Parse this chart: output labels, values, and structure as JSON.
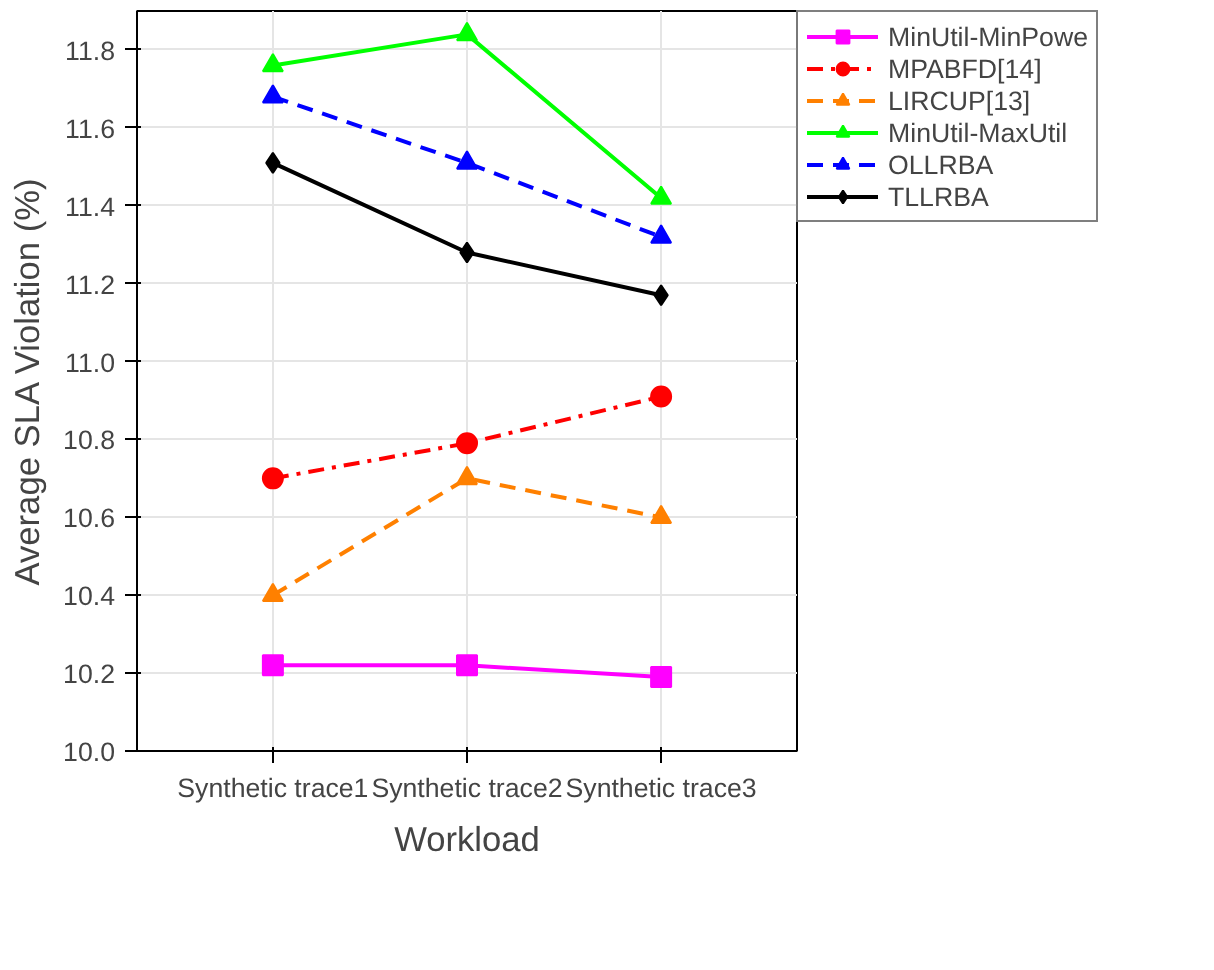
{
  "chart_data": {
    "type": "line",
    "xlabel": "Workload",
    "ylabel": "Average SLA Violation (%)",
    "categories": [
      "Synthetic trace1",
      "Synthetic trace2",
      "Synthetic trace3"
    ],
    "ylim": [
      10.0,
      11.9
    ],
    "yticks": [
      {
        "value": 10.0,
        "label": "10.0"
      },
      {
        "value": 10.2,
        "label": "10.2"
      },
      {
        "value": 10.4,
        "label": "10.4"
      },
      {
        "value": 10.6,
        "label": "10.6"
      },
      {
        "value": 10.8,
        "label": "10.8"
      },
      {
        "value": 11.0,
        "label": "11.0"
      },
      {
        "value": 11.2,
        "label": "11.2"
      },
      {
        "value": 11.4,
        "label": "11.4"
      },
      {
        "value": 11.6,
        "label": "11.6"
      },
      {
        "value": 11.8,
        "label": "11.8"
      }
    ],
    "grid": true,
    "legend": "top right",
    "series": [
      {
        "name": "MinUtil-MinPowe",
        "color": "#ff00ff",
        "marker": "square",
        "line_style": "solid",
        "values": [
          10.22,
          10.22,
          10.19
        ]
      },
      {
        "name": "MPABFD[14]",
        "color": "#ff0000",
        "marker": "circle",
        "line_style": "dashdot",
        "values": [
          10.7,
          10.79,
          10.91
        ]
      },
      {
        "name": "LIRCUP[13]",
        "color": "#ff8000",
        "marker": "triangle",
        "line_style": "dashed",
        "values": [
          10.4,
          10.7,
          10.6
        ]
      },
      {
        "name": "MinUtil-MaxUtil",
        "color": "#00ff00",
        "marker": "triangle",
        "line_style": "solid",
        "values": [
          11.76,
          11.84,
          11.42
        ]
      },
      {
        "name": "OLLRBA",
        "color": "#0000ff",
        "marker": "triangle",
        "line_style": "dashed",
        "values": [
          11.68,
          11.51,
          11.32
        ]
      },
      {
        "name": "TLLRBA",
        "color": "#000000",
        "marker": "diamond",
        "line_style": "solid",
        "values": [
          11.51,
          11.28,
          11.17
        ]
      }
    ]
  }
}
